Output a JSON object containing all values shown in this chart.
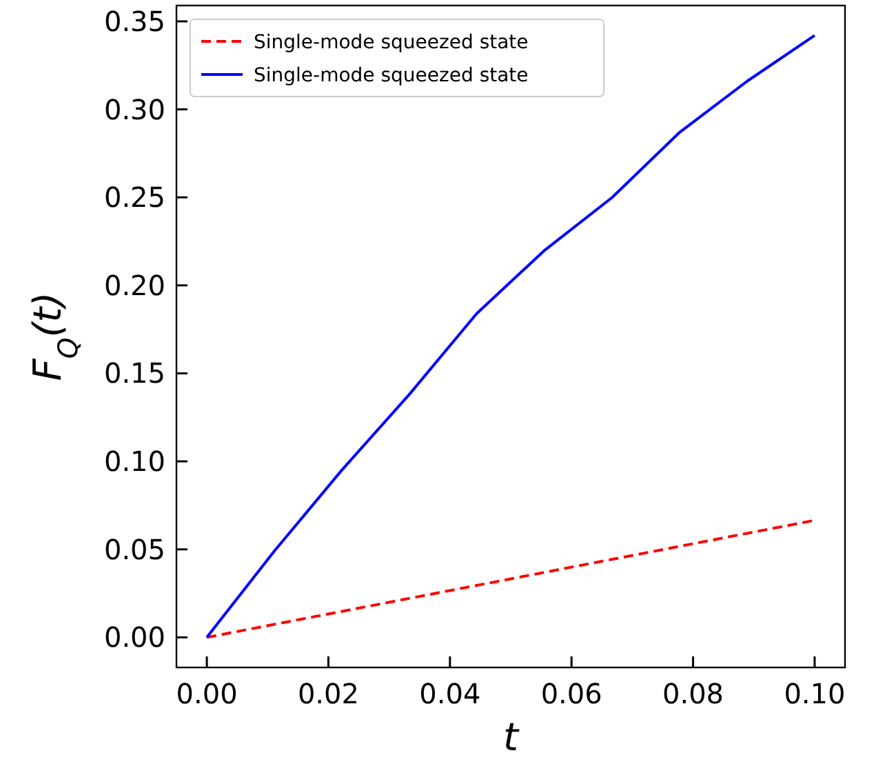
{
  "chart_data": {
    "type": "line",
    "xlabel": "t",
    "ylabel": "F$_{Q}$(t)",
    "xlim": [
      -0.005,
      0.105
    ],
    "ylim": [
      -0.0171,
      0.359
    ],
    "xticks": [
      {
        "value": 0,
        "label": "0.00"
      },
      {
        "value": 0.02,
        "label": "0.02"
      },
      {
        "value": 0.04,
        "label": "0.04"
      },
      {
        "value": 0.06,
        "label": "0.06"
      },
      {
        "value": 0.08,
        "label": "0.08"
      },
      {
        "value": 0.1,
        "label": "0.10"
      }
    ],
    "yticks": [
      {
        "value": 0,
        "label": "0.00"
      },
      {
        "value": 0.05,
        "label": "0.05"
      },
      {
        "value": 0.1,
        "label": "0.10"
      },
      {
        "value": 0.15,
        "label": "0.15"
      },
      {
        "value": 0.2,
        "label": "0.20"
      },
      {
        "value": 0.25,
        "label": "0.25"
      },
      {
        "value": 0.3,
        "label": "0.30"
      },
      {
        "value": 0.35,
        "label": "0.35"
      }
    ],
    "legend": "top left",
    "grid": false,
    "x": [
      0,
      0.0111,
      0.0222,
      0.0333,
      0.0444,
      0.0556,
      0.0667,
      0.0778,
      0.0889,
      0.1
    ],
    "series": [
      {
        "name": "Single-mode squeezed state",
        "color": "#ff0000",
        "line_style": "dashed",
        "x": [
          0,
          0.1
        ],
        "values": [
          0,
          0.0665
        ]
      },
      {
        "name": "Single-mode squeezed state",
        "color": "#0000ff",
        "line_style": "solid",
        "values": [
          0,
          0.049,
          0.095,
          0.138,
          0.184,
          0.22,
          0.25,
          0.287,
          0.316,
          0.342
        ]
      }
    ]
  }
}
